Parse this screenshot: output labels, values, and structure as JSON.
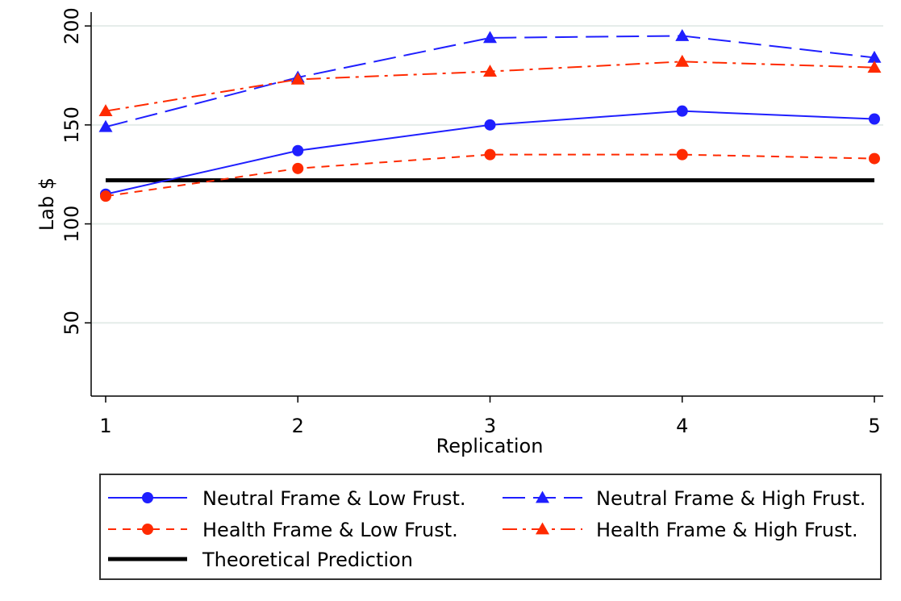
{
  "chart_data": {
    "type": "line",
    "title": "",
    "xlabel": "Replication",
    "ylabel": "Lab $",
    "x": [
      1,
      2,
      3,
      4,
      5
    ],
    "xlim": [
      1,
      5
    ],
    "ylim": [
      13,
      207
    ],
    "yticks": [
      50,
      100,
      150,
      200
    ],
    "grid": true,
    "legend_position": "bottom",
    "series": [
      {
        "name": "Neutral Frame & Low Frust.",
        "values": [
          115,
          137,
          150,
          157,
          153
        ],
        "color": "#1f1fff",
        "marker": "circle",
        "dash": "solid"
      },
      {
        "name": "Neutral Frame & High Frust.",
        "values": [
          149,
          174,
          194,
          195,
          184
        ],
        "color": "#1f1fff",
        "marker": "triangle",
        "dash": "longdash"
      },
      {
        "name": "Health Frame & Low Frust.",
        "values": [
          114,
          128,
          135,
          135,
          133
        ],
        "color": "#ff2a00",
        "marker": "circle",
        "dash": "dash"
      },
      {
        "name": "Health Frame & High Frust.",
        "values": [
          157,
          173,
          177,
          182,
          179
        ],
        "color": "#ff2a00",
        "marker": "triangle",
        "dash": "dashdot"
      }
    ],
    "reference_line": {
      "name": "Theoretical Prediction",
      "value": 122,
      "color": "#000000"
    }
  }
}
